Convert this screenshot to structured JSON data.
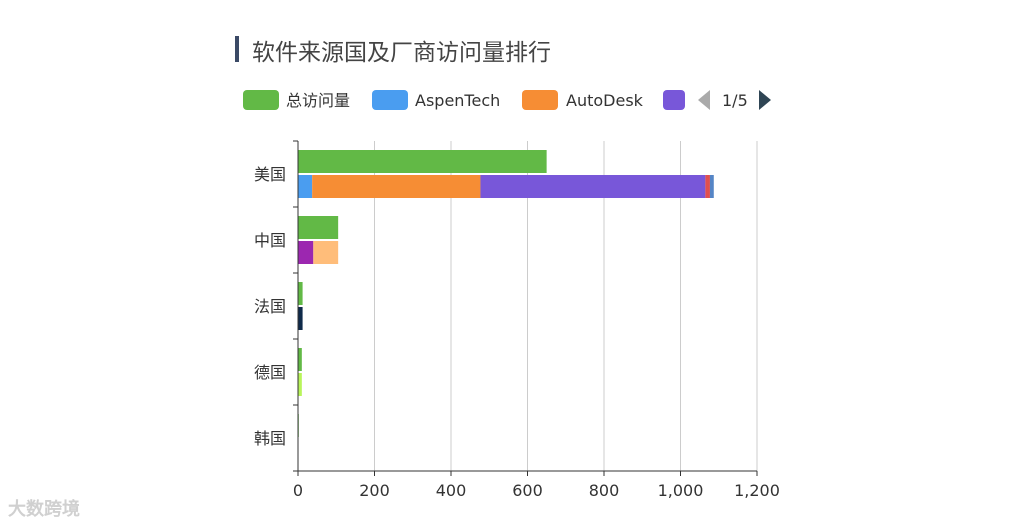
{
  "chart_data": {
    "type": "bar",
    "orientation": "horizontal",
    "title": "软件来源国及厂商访问量排行",
    "categories": [
      "美国",
      "中国",
      "法国",
      "德国",
      "韩国"
    ],
    "total": {
      "name": "总访问量",
      "color": "#62b946",
      "values": [
        650,
        105,
        12,
        10,
        2
      ]
    },
    "stacked_series": [
      {
        "name": "AspenTech",
        "color": "#4a9df0",
        "values": [
          37,
          0,
          0,
          0,
          0
        ]
      },
      {
        "name": "AutoDesk",
        "color": "#f68d34",
        "values": [
          440,
          0,
          0,
          0,
          0
        ]
      },
      {
        "color": "#7857d9",
        "values": [
          588,
          0,
          0,
          0,
          0
        ]
      },
      {
        "color": "#e04f4f",
        "values": [
          12,
          0,
          0,
          0,
          0
        ]
      },
      {
        "color": "#5585c6",
        "values": [
          10,
          0,
          0,
          0,
          0
        ]
      },
      {
        "color": "#9c27b0",
        "values": [
          0,
          40,
          0,
          0,
          0
        ]
      },
      {
        "color": "#ffbd7a",
        "values": [
          0,
          65,
          0,
          0,
          0
        ]
      },
      {
        "color": "#0f2a4a",
        "values": [
          0,
          0,
          12,
          0,
          0
        ]
      },
      {
        "color": "#b8f55a",
        "values": [
          0,
          0,
          0,
          10,
          0
        ]
      }
    ],
    "xlim": [
      0,
      1200
    ],
    "xticks": [
      "0",
      "200",
      "400",
      "600",
      "800",
      "1,000",
      "1,200"
    ],
    "grid": "vertical",
    "legend_position": "top",
    "legend_page": "1/5"
  },
  "watermark": "大数跨境"
}
